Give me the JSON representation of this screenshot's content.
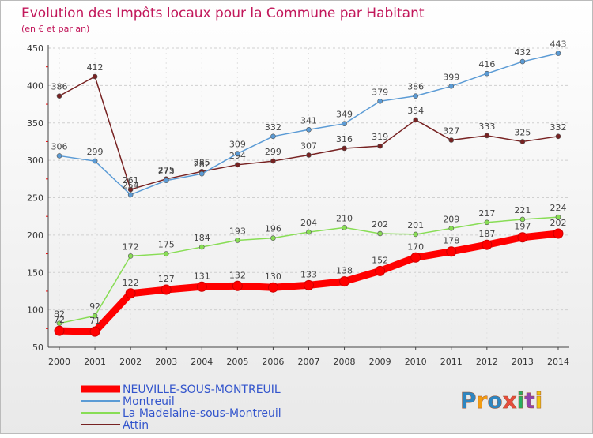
{
  "chart_data": {
    "type": "line",
    "title": "Evolution des Impôts locaux pour la Commune par Habitant",
    "subtitle": "(en € et par an)",
    "x": [
      "2000",
      "2001",
      "2002",
      "2003",
      "2004",
      "2005",
      "2006",
      "2007",
      "2008",
      "2009",
      "2010",
      "2011",
      "2012",
      "2013",
      "2014"
    ],
    "ylim": [
      50,
      450
    ],
    "yticks": [
      50,
      100,
      150,
      200,
      250,
      300,
      350,
      400,
      450
    ],
    "grid": "horizontal dashed",
    "legend_position": "bottom-left",
    "series": [
      {
        "name": "NEUVILLE-SOUS-MONTREUIL",
        "color": "#ff0000",
        "values": [
          72,
          71,
          122,
          127,
          131,
          132,
          130,
          133,
          138,
          152,
          170,
          178,
          187,
          197,
          202
        ]
      },
      {
        "name": "Montreuil",
        "color": "#5b9bd5",
        "values": [
          306,
          299,
          254,
          273,
          282,
          309,
          332,
          341,
          349,
          379,
          386,
          399,
          416,
          432,
          443
        ]
      },
      {
        "name": "La Madelaine-sous-Montreuil",
        "color": "#88dd55",
        "values": [
          82,
          92,
          172,
          175,
          184,
          193,
          196,
          204,
          210,
          202,
          201,
          209,
          217,
          221,
          224
        ]
      },
      {
        "name": "Attin",
        "color": "#772222",
        "values": [
          386,
          412,
          261,
          275,
          285,
          294,
          299,
          307,
          316,
          319,
          354,
          327,
          333,
          325,
          332
        ]
      }
    ]
  },
  "watermark": {
    "text": "Proxiti"
  }
}
